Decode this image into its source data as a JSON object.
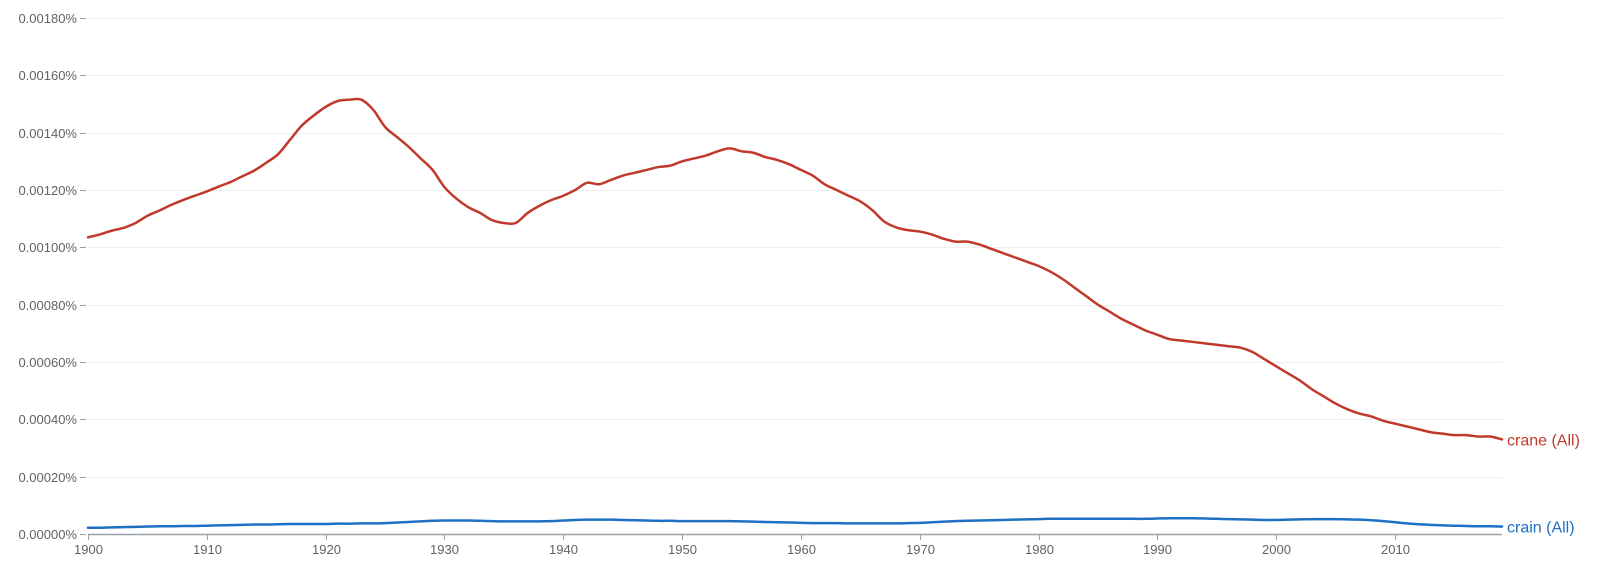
{
  "chart_data": {
    "type": "line",
    "title": "",
    "xlabel": "",
    "ylabel": "",
    "xlim": [
      1900,
      2019
    ],
    "ylim": [
      0,
      0.0018
    ],
    "grid": true,
    "legend": "right end of lines",
    "x_ticks": [
      1900,
      1910,
      1920,
      1930,
      1940,
      1950,
      1960,
      1970,
      1980,
      1990,
      2000,
      2010
    ],
    "x_tick_labels": [
      "1900",
      "1910",
      "1920",
      "1930",
      "1940",
      "1950",
      "1960",
      "1970",
      "1980",
      "1990",
      "2000",
      "2010"
    ],
    "y_ticks": [
      0,
      0.0002,
      0.0004,
      0.0006,
      0.0008,
      0.001,
      0.0012,
      0.0014,
      0.0016,
      0.0018
    ],
    "y_tick_labels": [
      "0.00000%",
      "0.00020%",
      "0.00040%",
      "0.00060%",
      "0.00080%",
      "0.00100%",
      "0.00120%",
      "0.00140%",
      "0.00160%",
      "0.00180%"
    ],
    "x": [
      1900,
      1901,
      1902,
      1903,
      1904,
      1905,
      1906,
      1907,
      1908,
      1909,
      1910,
      1911,
      1912,
      1913,
      1914,
      1915,
      1916,
      1917,
      1918,
      1919,
      1920,
      1921,
      1922,
      1923,
      1924,
      1925,
      1926,
      1927,
      1928,
      1929,
      1930,
      1931,
      1932,
      1933,
      1934,
      1935,
      1936,
      1937,
      1938,
      1939,
      1940,
      1941,
      1942,
      1943,
      1944,
      1945,
      1946,
      1947,
      1948,
      1949,
      1950,
      1951,
      1952,
      1953,
      1954,
      1955,
      1956,
      1957,
      1958,
      1959,
      1960,
      1961,
      1962,
      1963,
      1964,
      1965,
      1966,
      1967,
      1968,
      1969,
      1970,
      1971,
      1972,
      1973,
      1974,
      1975,
      1976,
      1977,
      1978,
      1979,
      1980,
      1981,
      1982,
      1983,
      1984,
      1985,
      1986,
      1987,
      1988,
      1989,
      1990,
      1991,
      1992,
      1993,
      1994,
      1995,
      1996,
      1997,
      1998,
      1999,
      2000,
      2001,
      2002,
      2003,
      2004,
      2005,
      2006,
      2007,
      2008,
      2009,
      2010,
      2011,
      2012,
      2013,
      2014,
      2015,
      2016,
      2017,
      2018,
      2019
    ],
    "series": [
      {
        "name": "crane (All)",
        "color": "#c0392b",
        "values": [
          0.001035,
          0.001045,
          0.001058,
          0.001068,
          0.001085,
          0.00111,
          0.001128,
          0.001148,
          0.001165,
          0.00118,
          0.001195,
          0.001212,
          0.001228,
          0.001248,
          0.001268,
          0.001295,
          0.001325,
          0.001375,
          0.001425,
          0.00146,
          0.00149,
          0.00151,
          0.001515,
          0.001515,
          0.00148,
          0.00142,
          0.001385,
          0.00135,
          0.00131,
          0.00127,
          0.00121,
          0.00117,
          0.00114,
          0.00112,
          0.001095,
          0.001085,
          0.001085,
          0.00112,
          0.001145,
          0.001165,
          0.00118,
          0.0012,
          0.001225,
          0.00122,
          0.001235,
          0.00125,
          0.00126,
          0.00127,
          0.00128,
          0.001285,
          0.0013,
          0.00131,
          0.00132,
          0.001335,
          0.001345,
          0.001335,
          0.00133,
          0.001315,
          0.001305,
          0.00129,
          0.00127,
          0.00125,
          0.00122,
          0.0012,
          0.00118,
          0.00116,
          0.00113,
          0.00109,
          0.00107,
          0.00106,
          0.001055,
          0.001045,
          0.00103,
          0.00102,
          0.00102,
          0.00101,
          0.000995,
          0.00098,
          0.000965,
          0.00095,
          0.000935,
          0.000915,
          0.00089,
          0.00086,
          0.00083,
          0.0008,
          0.000775,
          0.00075,
          0.00073,
          0.00071,
          0.000695,
          0.00068,
          0.000675,
          0.00067,
          0.000665,
          0.00066,
          0.000655,
          0.00065,
          0.000635,
          0.00061,
          0.000585,
          0.00056,
          0.000535,
          0.000505,
          0.00048,
          0.000455,
          0.000435,
          0.00042,
          0.00041,
          0.000395,
          0.000385,
          0.000375,
          0.000365,
          0.000355,
          0.00035,
          0.000345,
          0.000345,
          0.00034,
          0.00034,
          0.00033
        ]
      },
      {
        "name": "crain (All)",
        "color": "#1f6fc5",
        "values": [
          2.2e-05,
          2.2e-05,
          2.3e-05,
          2.4e-05,
          2.5e-05,
          2.6e-05,
          2.7e-05,
          2.7e-05,
          2.8e-05,
          2.8e-05,
          2.9e-05,
          3e-05,
          3.1e-05,
          3.2e-05,
          3.3e-05,
          3.3e-05,
          3.4e-05,
          3.5e-05,
          3.5e-05,
          3.5e-05,
          3.5e-05,
          3.6e-05,
          3.6e-05,
          3.7e-05,
          3.7e-05,
          3.8e-05,
          4e-05,
          4.2e-05,
          4.4e-05,
          4.6e-05,
          4.7e-05,
          4.7e-05,
          4.7e-05,
          4.6e-05,
          4.5e-05,
          4.4e-05,
          4.4e-05,
          4.4e-05,
          4.4e-05,
          4.5e-05,
          4.7e-05,
          4.9e-05,
          5e-05,
          5e-05,
          5e-05,
          4.9e-05,
          4.8e-05,
          4.7e-05,
          4.6e-05,
          4.6e-05,
          4.5e-05,
          4.5e-05,
          4.5e-05,
          4.5e-05,
          4.5e-05,
          4.4e-05,
          4.3e-05,
          4.2e-05,
          4.1e-05,
          4e-05,
          3.9e-05,
          3.8e-05,
          3.8e-05,
          3.8e-05,
          3.7e-05,
          3.7e-05,
          3.7e-05,
          3.7e-05,
          3.7e-05,
          3.8e-05,
          3.9e-05,
          4.1e-05,
          4.3e-05,
          4.5e-05,
          4.6e-05,
          4.7e-05,
          4.8e-05,
          4.9e-05,
          5e-05,
          5.1e-05,
          5.2e-05,
          5.3e-05,
          5.3e-05,
          5.3e-05,
          5.3e-05,
          5.3e-05,
          5.3e-05,
          5.3e-05,
          5.3e-05,
          5.3e-05,
          5.4e-05,
          5.5e-05,
          5.5e-05,
          5.5e-05,
          5.4e-05,
          5.3e-05,
          5.2e-05,
          5.1e-05,
          5e-05,
          4.9e-05,
          4.9e-05,
          5e-05,
          5.1e-05,
          5.2e-05,
          5.2e-05,
          5.2e-05,
          5.1e-05,
          5e-05,
          4.8e-05,
          4.5e-05,
          4.1e-05,
          3.7e-05,
          3.4e-05,
          3.2e-05,
          3e-05,
          2.9e-05,
          2.8e-05,
          2.7e-05,
          2.7e-05,
          2.6e-05
        ]
      }
    ]
  }
}
